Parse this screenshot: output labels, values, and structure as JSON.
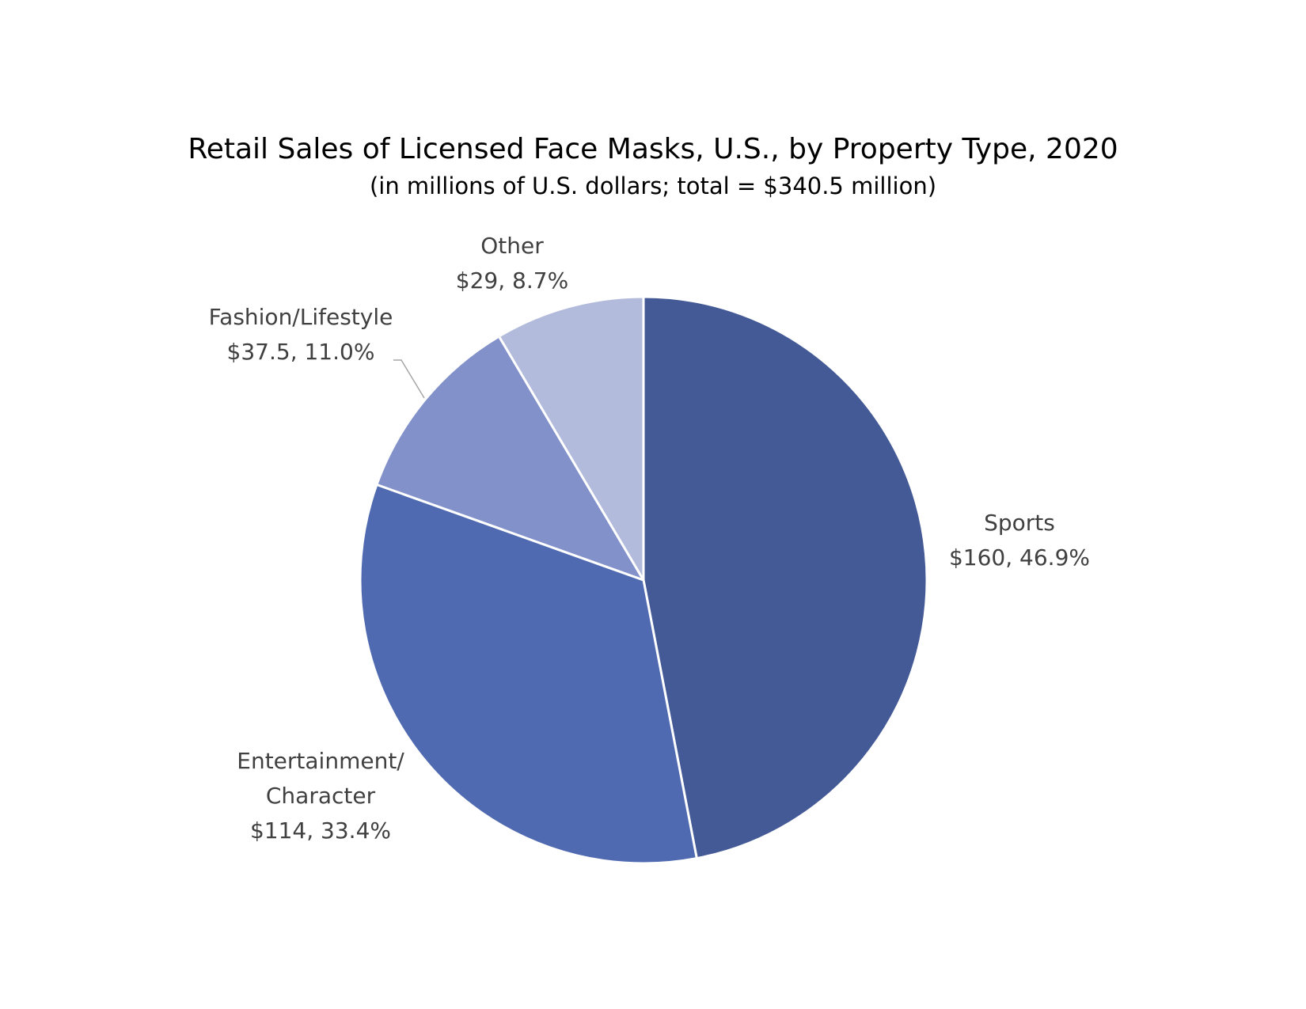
{
  "chart_data": {
    "type": "pie",
    "title": "Retail Sales of Licensed Face Masks, U.S., by Property Type, 2020",
    "subtitle": "(in millions of U.S. dollars; total = $340.5 million)",
    "slices": [
      {
        "label": "Sports",
        "value": 160,
        "percent": 46.9,
        "value_label": "$160, 46.9%",
        "color": "#445a96"
      },
      {
        "label": "Entertainment/ Character",
        "label_lines": [
          "Entertainment/",
          "Character"
        ],
        "value": 114,
        "percent": 33.4,
        "value_label": "$114, 33.4%",
        "color": "#506ab2"
      },
      {
        "label": "Fashion/Lifestyle",
        "value": 37.5,
        "percent": 11.0,
        "value_label": "$37.5, 11.0%",
        "color": "#8291ca"
      },
      {
        "label": "Other",
        "value": 29,
        "percent": 8.7,
        "value_label": "$29, 8.7%",
        "color": "#b3bbdc"
      }
    ],
    "start": "12 o'clock",
    "direction": "clockwise",
    "legend": "none",
    "label_color": "#404040"
  }
}
